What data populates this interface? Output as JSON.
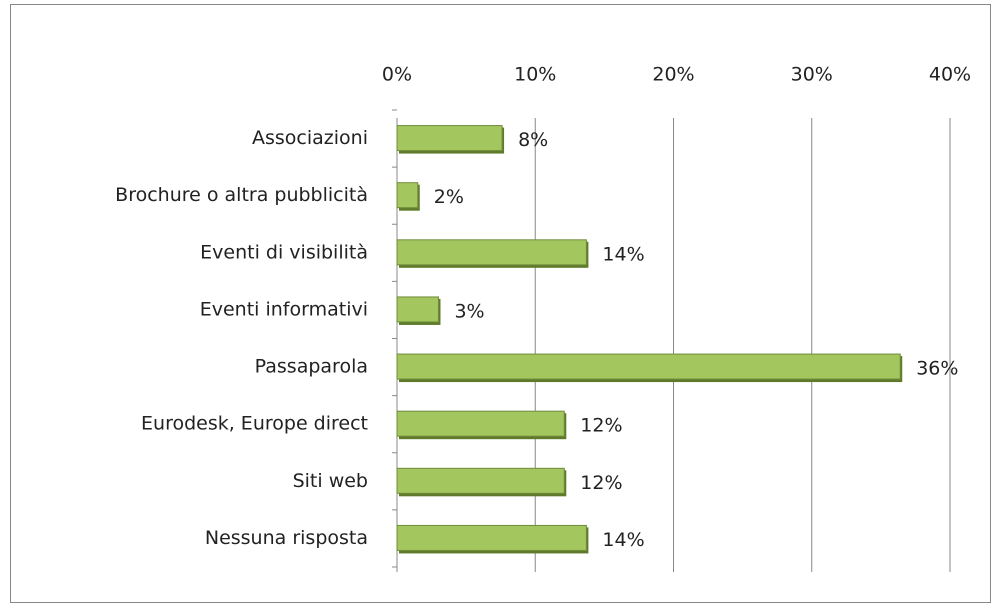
{
  "chart_data": {
    "type": "bar",
    "orientation": "horizontal",
    "categories": [
      "Associazioni",
      "Brochure o altra pubblicità",
      "Eventi di visibilità",
      "Eventi informativi",
      "Passaparola",
      "Eurodesk, Europe direct",
      "Siti web",
      "Nessuna risposta"
    ],
    "values": [
      7.6,
      1.5,
      13.7,
      3.0,
      36.4,
      12.1,
      12.1,
      13.7
    ],
    "value_labels": [
      "8%",
      "2%",
      "14%",
      "3%",
      "36%",
      "12%",
      "12%",
      "14%"
    ],
    "color": "#a4c65f",
    "xlim": [
      0,
      40
    ],
    "xticks": [
      {
        "value": 0,
        "label": "0%"
      },
      {
        "value": 10,
        "label": "10%"
      },
      {
        "value": 20,
        "label": "20%"
      },
      {
        "value": 30,
        "label": "30%"
      },
      {
        "value": 40,
        "label": "40%"
      }
    ],
    "grid": true
  }
}
